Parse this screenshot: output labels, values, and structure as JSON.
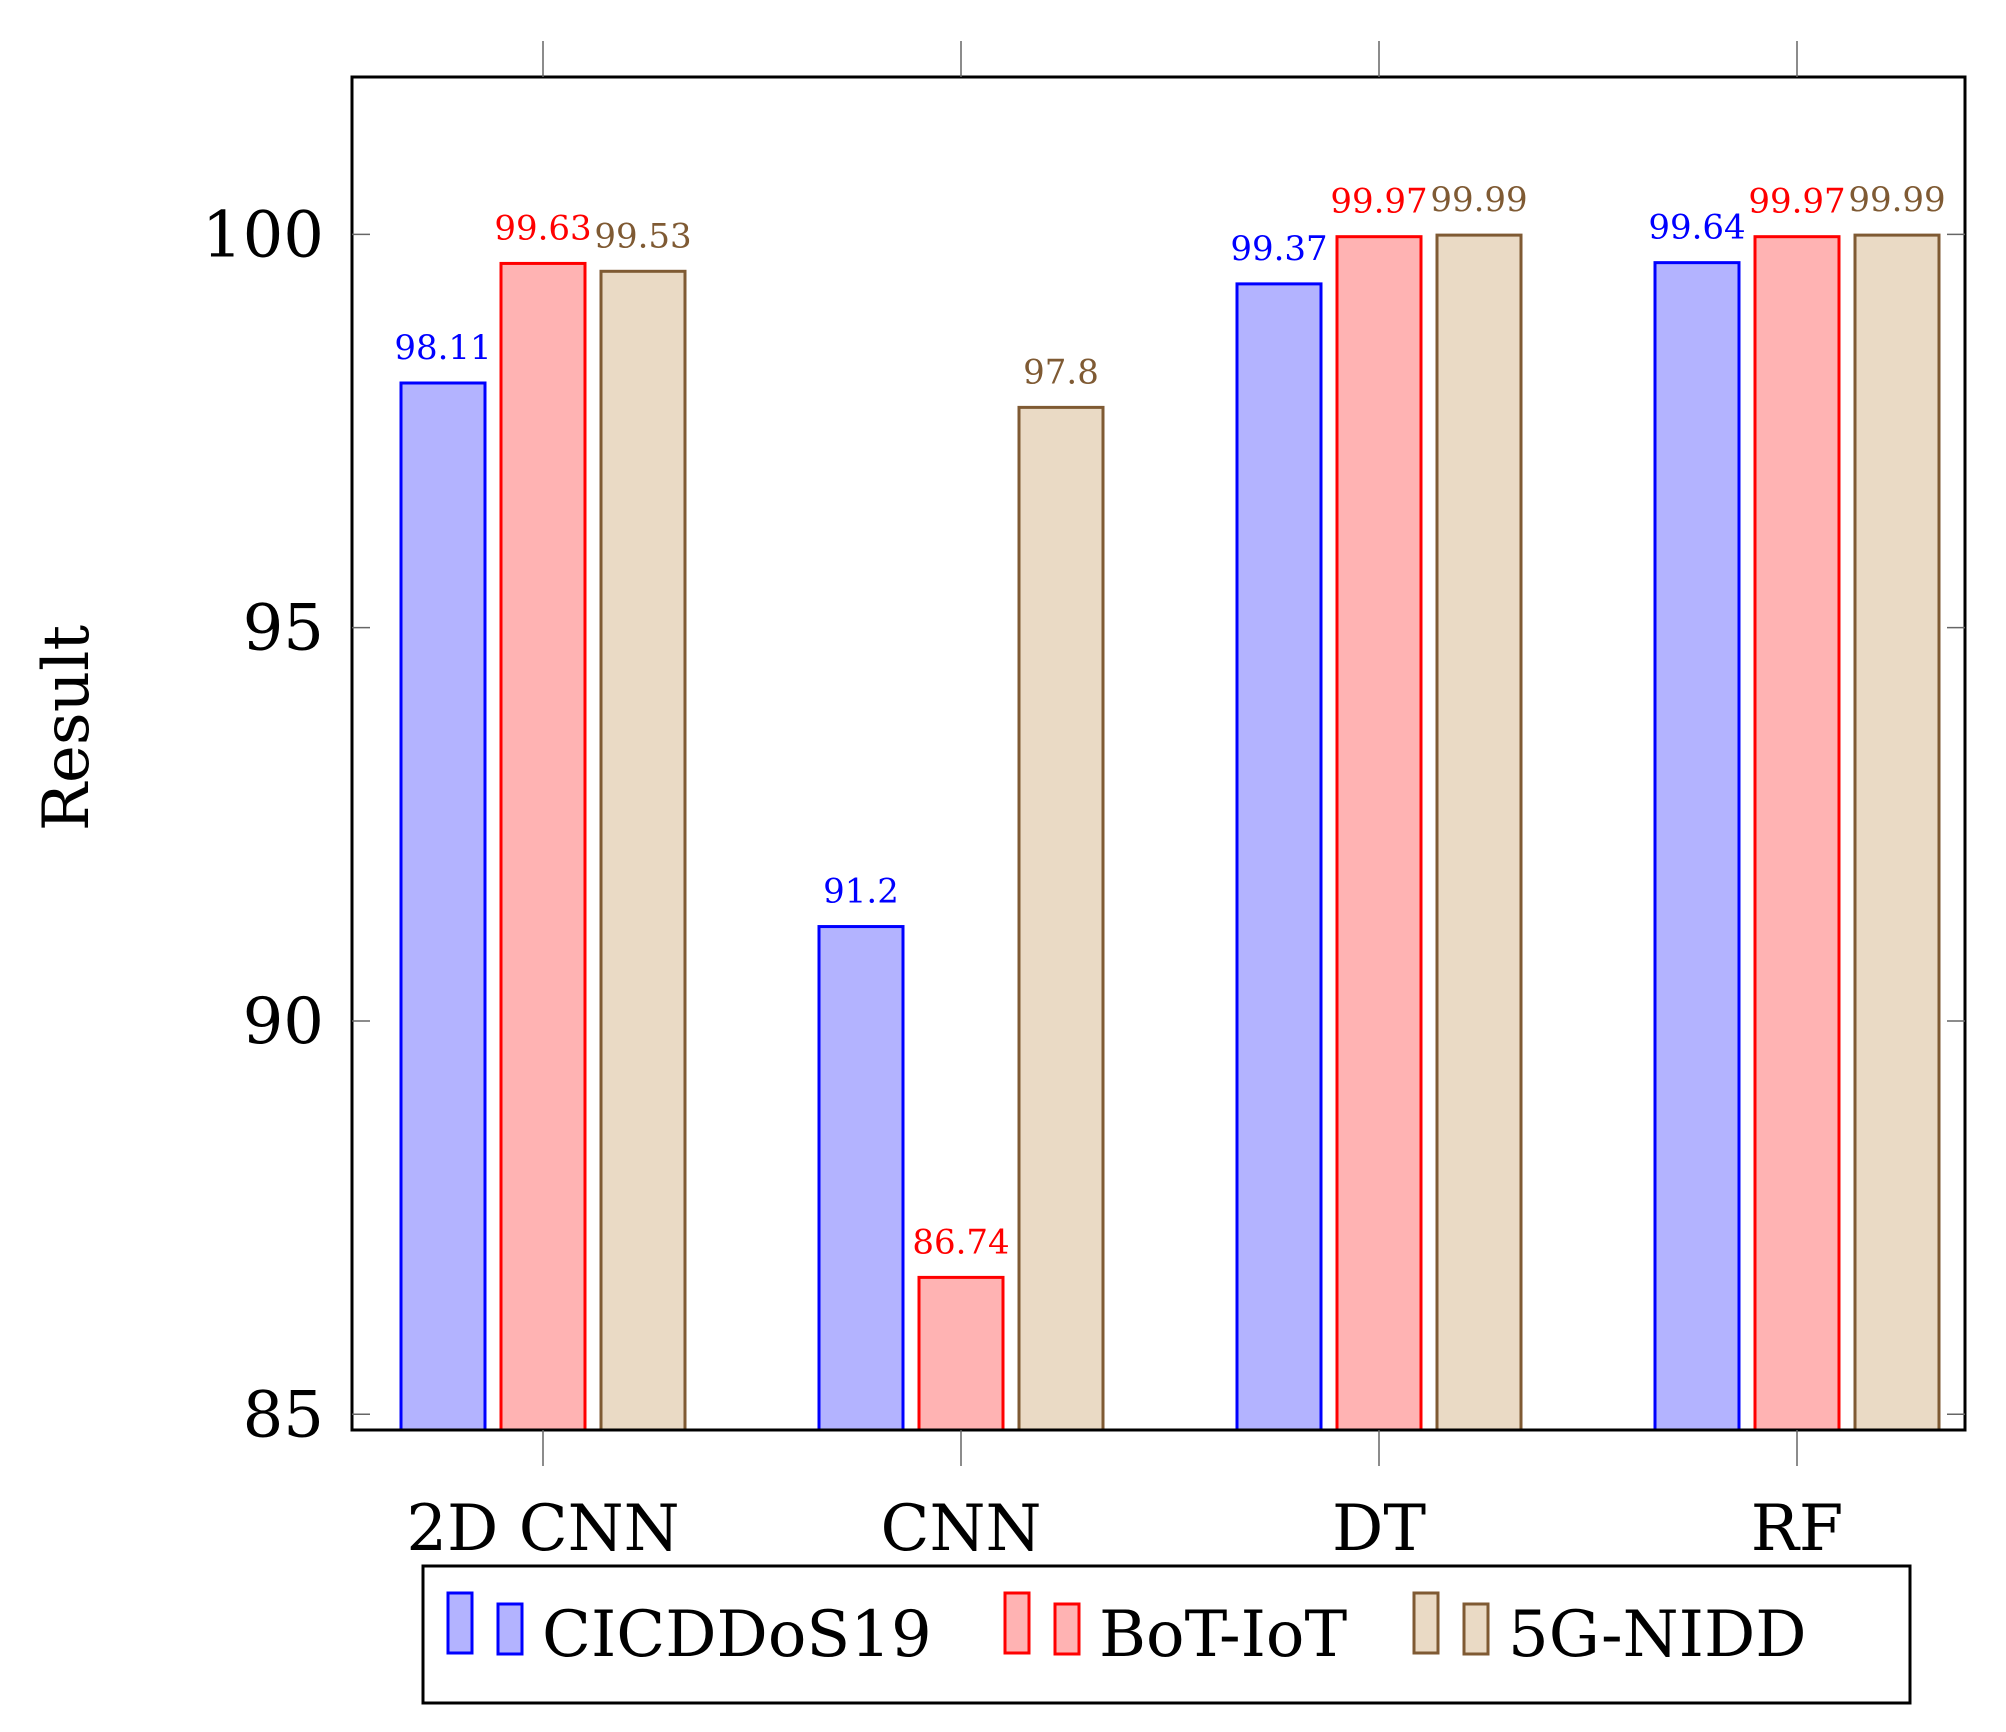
{
  "chart_data": {
    "type": "bar",
    "title": "",
    "xlabel": "",
    "ylabel": "Result",
    "categories": [
      "2D CNN",
      "CNN",
      "DT",
      "RF"
    ],
    "ylim": [
      84.8,
      102
    ],
    "yticks": [
      "85",
      "90",
      "95",
      "100"
    ],
    "series": [
      {
        "name": "CICDDoS19",
        "values": [
          98.11,
          91.2,
          99.37,
          99.64
        ],
        "labels": [
          "98.11",
          "91.2",
          "99.37",
          "99.64"
        ],
        "stroke": "#0000ff",
        "fill": "#b3b3ff"
      },
      {
        "name": "BoT-IoT",
        "values": [
          99.63,
          86.74,
          99.97,
          99.97
        ],
        "labels": [
          "99.63",
          "86.74",
          "99.97",
          "99.97"
        ],
        "stroke": "#ff0000",
        "fill": "#ffb3b3"
      },
      {
        "name": "5G-NIDD",
        "values": [
          99.53,
          97.8,
          99.99,
          99.99
        ],
        "labels": [
          "99.53",
          "97.8",
          "99.99",
          "99.99"
        ],
        "stroke": "#7f5a33",
        "fill": "#eadac5"
      }
    ],
    "legend_position": "bottom"
  }
}
